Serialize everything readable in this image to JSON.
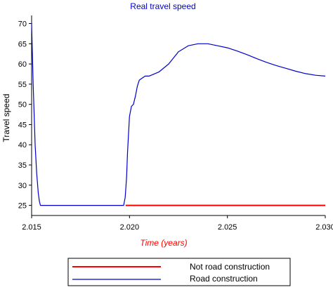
{
  "chart_data": {
    "type": "line",
    "title": "Real travel speed",
    "xlabel": "Time (years)",
    "ylabel": "Travel speed",
    "xlim": [
      2.015,
      2.03
    ],
    "ylim": [
      22.5,
      72
    ],
    "xticks": [
      2.015,
      2.02,
      2.025,
      2.03
    ],
    "xtick_labels": [
      "2.015",
      "2.020",
      "2.025",
      "2.030"
    ],
    "yticks": [
      25,
      30,
      35,
      40,
      45,
      50,
      55,
      60,
      65,
      70
    ],
    "ytick_labels": [
      "25",
      "30",
      "35",
      "40",
      "45",
      "50",
      "55",
      "60",
      "65",
      "70"
    ],
    "grid": false,
    "legend_position": "bottom",
    "colors": {
      "title": "#0000cc",
      "xlabel": "#ff0000",
      "axis": "#000000"
    },
    "series": [
      {
        "name": "Not road construction",
        "color": "#ff0000",
        "x": [
          2.0198,
          2.03
        ],
        "y": [
          25,
          25
        ]
      },
      {
        "name": "Road construction",
        "color": "#0000cc",
        "x": [
          2.015,
          2.01508,
          2.01518,
          2.01526,
          2.01534,
          2.0154,
          2.01545,
          2.0155,
          2.0158,
          2.017,
          2.018,
          2.019,
          2.0197,
          2.01978,
          2.01985,
          2.0199,
          2.02,
          2.0201,
          2.0202,
          2.0203,
          2.0204,
          2.0205,
          2.02065,
          2.0208,
          2.021,
          2.0215,
          2.022,
          2.0225,
          2.023,
          2.0235,
          2.024,
          2.0245,
          2.025,
          2.0255,
          2.026,
          2.0265,
          2.027,
          2.0275,
          2.028,
          2.0285,
          2.029,
          2.0295,
          2.03
        ],
        "y": [
          70,
          55,
          40,
          33,
          28,
          26,
          25,
          25,
          25,
          25,
          25,
          25,
          25,
          27,
          32,
          38,
          47,
          49.5,
          50,
          52,
          54.5,
          56,
          56.5,
          57,
          57,
          58,
          60,
          63,
          64.5,
          65,
          65,
          64.5,
          64,
          63.2,
          62.3,
          61.3,
          60.4,
          59.6,
          58.9,
          58.2,
          57.6,
          57.2,
          57
        ]
      }
    ]
  }
}
